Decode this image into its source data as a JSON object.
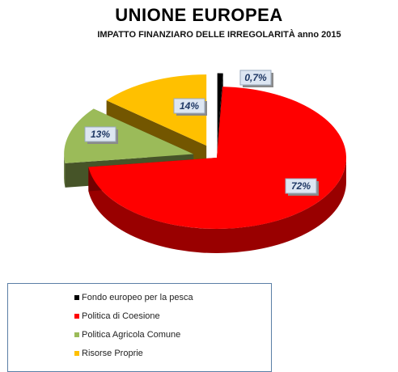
{
  "chart_data": {
    "type": "pie",
    "title": "UNIONE EUROPEA",
    "subtitle": "IMPATTO FINANZIARO DELLE IRREGOLARITÀ anno 2015",
    "categories": [
      "Fondo europeo per la pesca",
      "Politica di Coesione",
      "Politica Agricola Comune",
      "Risorse Proprie"
    ],
    "values": [
      0.7,
      72,
      13,
      14
    ],
    "data_labels": [
      "0,7%",
      "72%",
      "13%",
      "14%"
    ],
    "colors": [
      "#000000",
      "#ff0000",
      "#9bbb59",
      "#ffc000"
    ],
    "legend_position": "bottom-left",
    "style": "3d-exploded"
  }
}
